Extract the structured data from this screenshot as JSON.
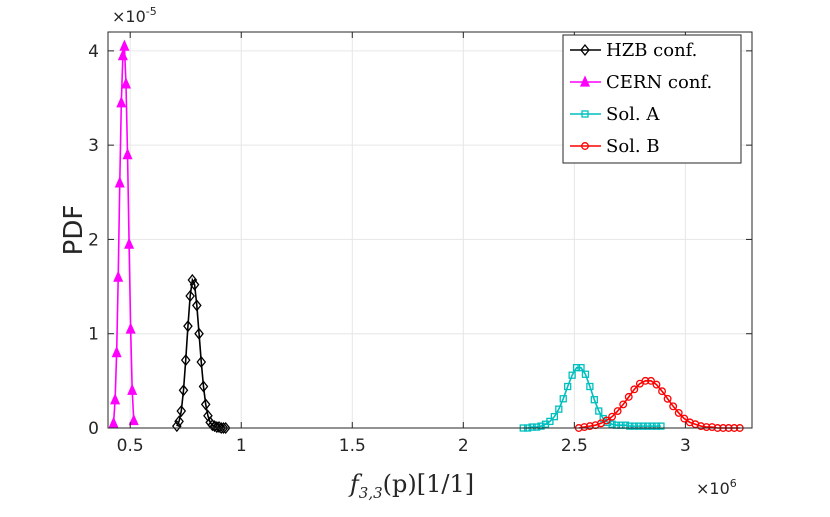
{
  "chart_data": {
    "type": "line",
    "title": "",
    "xlabel": "f_{3,3}(p)[1/1]",
    "xlabel_parts": {
      "f": "f",
      "sub": "3,3",
      "p": "(p)[1/1]"
    },
    "ylabel": "PDF",
    "x_exponent": {
      "base": "×10",
      "power": "6"
    },
    "y_exponent": {
      "base": "×10",
      "power": "-5"
    },
    "xlim": [
      0.4,
      3.3
    ],
    "ylim": [
      0,
      4.2
    ],
    "x_scale_note": "x values in units of 1e6",
    "y_scale_note": "y values in units of 1e-5",
    "xticks": [
      0.5,
      1,
      1.5,
      2,
      2.5,
      3
    ],
    "xtick_labels": [
      "0.5",
      "1",
      "1.5",
      "2",
      "2.5",
      "3"
    ],
    "yticks": [
      0,
      1,
      2,
      3,
      4
    ],
    "ytick_labels": [
      "0",
      "1",
      "2",
      "3",
      "4"
    ],
    "grid": true,
    "legend_position": "top-right",
    "series": [
      {
        "name": "HZB conf.",
        "color": "#000000",
        "marker": "diamond",
        "x": [
          0.71,
          0.72,
          0.73,
          0.74,
          0.75,
          0.76,
          0.77,
          0.78,
          0.79,
          0.8,
          0.81,
          0.82,
          0.83,
          0.84,
          0.85,
          0.86,
          0.87,
          0.88,
          0.89,
          0.9,
          0.91,
          0.92,
          0.93
        ],
        "y": [
          0.02,
          0.07,
          0.18,
          0.4,
          0.72,
          1.08,
          1.4,
          1.57,
          1.52,
          1.3,
          1.0,
          0.7,
          0.44,
          0.25,
          0.13,
          0.06,
          0.03,
          0.02,
          0.01,
          0.01,
          0.0,
          0.0,
          0.0
        ]
      },
      {
        "name": "CERN conf.",
        "color": "#ff00ff",
        "marker": "triangle",
        "x": [
          0.425,
          0.432,
          0.439,
          0.446,
          0.453,
          0.46,
          0.467,
          0.474,
          0.481,
          0.488,
          0.495,
          0.502,
          0.509,
          0.516
        ],
        "y": [
          0.05,
          0.3,
          0.8,
          1.6,
          2.6,
          3.45,
          3.95,
          4.05,
          3.65,
          2.9,
          1.95,
          1.05,
          0.4,
          0.08
        ]
      },
      {
        "name": "Sol.  A",
        "color": "#00bfbf",
        "marker": "square",
        "x": [
          2.27,
          2.29,
          2.31,
          2.33,
          2.35,
          2.37,
          2.39,
          2.41,
          2.43,
          2.45,
          2.47,
          2.49,
          2.51,
          2.53,
          2.55,
          2.57,
          2.59,
          2.61,
          2.63,
          2.65,
          2.67,
          2.69,
          2.71,
          2.73,
          2.75,
          2.77,
          2.79,
          2.81,
          2.83,
          2.85,
          2.87,
          2.89
        ],
        "y": [
          0.0,
          0.0,
          0.01,
          0.01,
          0.02,
          0.04,
          0.07,
          0.12,
          0.2,
          0.31,
          0.44,
          0.56,
          0.64,
          0.64,
          0.57,
          0.44,
          0.3,
          0.18,
          0.1,
          0.06,
          0.04,
          0.03,
          0.03,
          0.03,
          0.02,
          0.02,
          0.02,
          0.02,
          0.02,
          0.02,
          0.02,
          0.02
        ]
      },
      {
        "name": "Sol.  B",
        "color": "#ff0000",
        "marker": "circle",
        "x": [
          2.52,
          2.545,
          2.57,
          2.595,
          2.62,
          2.645,
          2.67,
          2.695,
          2.72,
          2.745,
          2.77,
          2.795,
          2.82,
          2.845,
          2.87,
          2.895,
          2.92,
          2.945,
          2.97,
          2.995,
          3.02,
          3.045,
          3.07,
          3.095,
          3.12,
          3.145,
          3.17,
          3.195,
          3.22,
          3.245
        ],
        "y": [
          0.0,
          0.01,
          0.02,
          0.03,
          0.05,
          0.08,
          0.12,
          0.18,
          0.25,
          0.33,
          0.41,
          0.47,
          0.5,
          0.5,
          0.46,
          0.39,
          0.31,
          0.23,
          0.16,
          0.1,
          0.06,
          0.04,
          0.02,
          0.01,
          0.01,
          0.0,
          0.0,
          0.0,
          0.0,
          0.0
        ]
      }
    ]
  }
}
